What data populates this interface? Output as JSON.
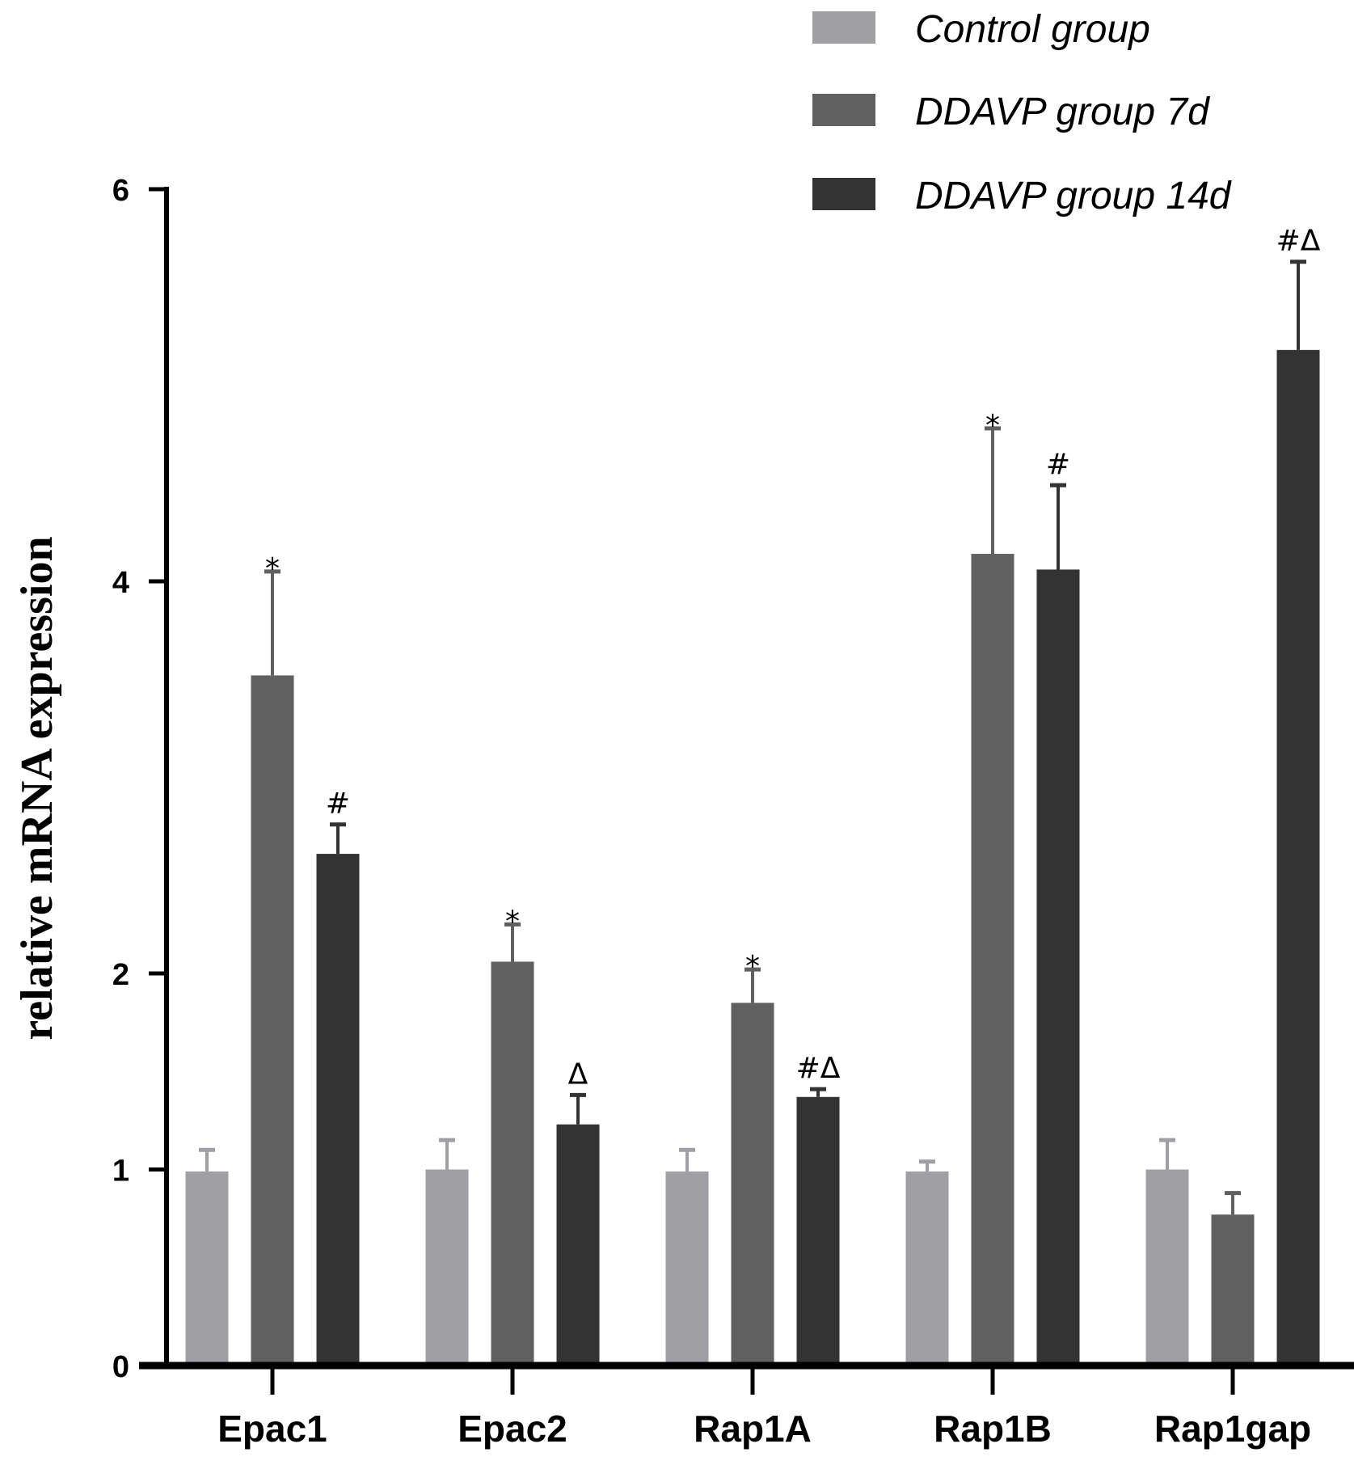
{
  "chart_data": {
    "type": "bar",
    "ylabel": "relative mRNA expression",
    "xlabel": "",
    "ylim": [
      0,
      6
    ],
    "yticks": [
      0,
      1,
      2,
      4,
      6
    ],
    "grid": false,
    "legend_position": "top-right",
    "categories": [
      "Epac1",
      "Epac2",
      "Rap1A",
      "Rap1B",
      "Rap1gap"
    ],
    "series": [
      {
        "name": "Control group",
        "color": "#a0a0a4",
        "values": [
          0.99,
          1.0,
          0.99,
          0.99,
          1.0
        ],
        "error": [
          0.11,
          0.15,
          0.11,
          0.05,
          0.15
        ],
        "annotations": [
          "",
          "",
          "",
          "",
          ""
        ]
      },
      {
        "name": "DDAVP group 7d",
        "color": "#606060",
        "values": [
          3.52,
          2.06,
          1.85,
          4.14,
          0.77
        ],
        "error": [
          0.53,
          0.19,
          0.17,
          0.64,
          0.11
        ],
        "annotations": [
          "*",
          "*",
          "*",
          "*",
          ""
        ]
      },
      {
        "name": "DDAVP group 14d",
        "color": "#333333",
        "values": [
          2.61,
          1.23,
          1.37,
          4.06,
          5.18
        ],
        "error": [
          0.15,
          0.15,
          0.04,
          0.43,
          0.45
        ],
        "annotations": [
          "#",
          "Δ",
          "#Δ",
          "#",
          "#Δ"
        ]
      }
    ]
  }
}
